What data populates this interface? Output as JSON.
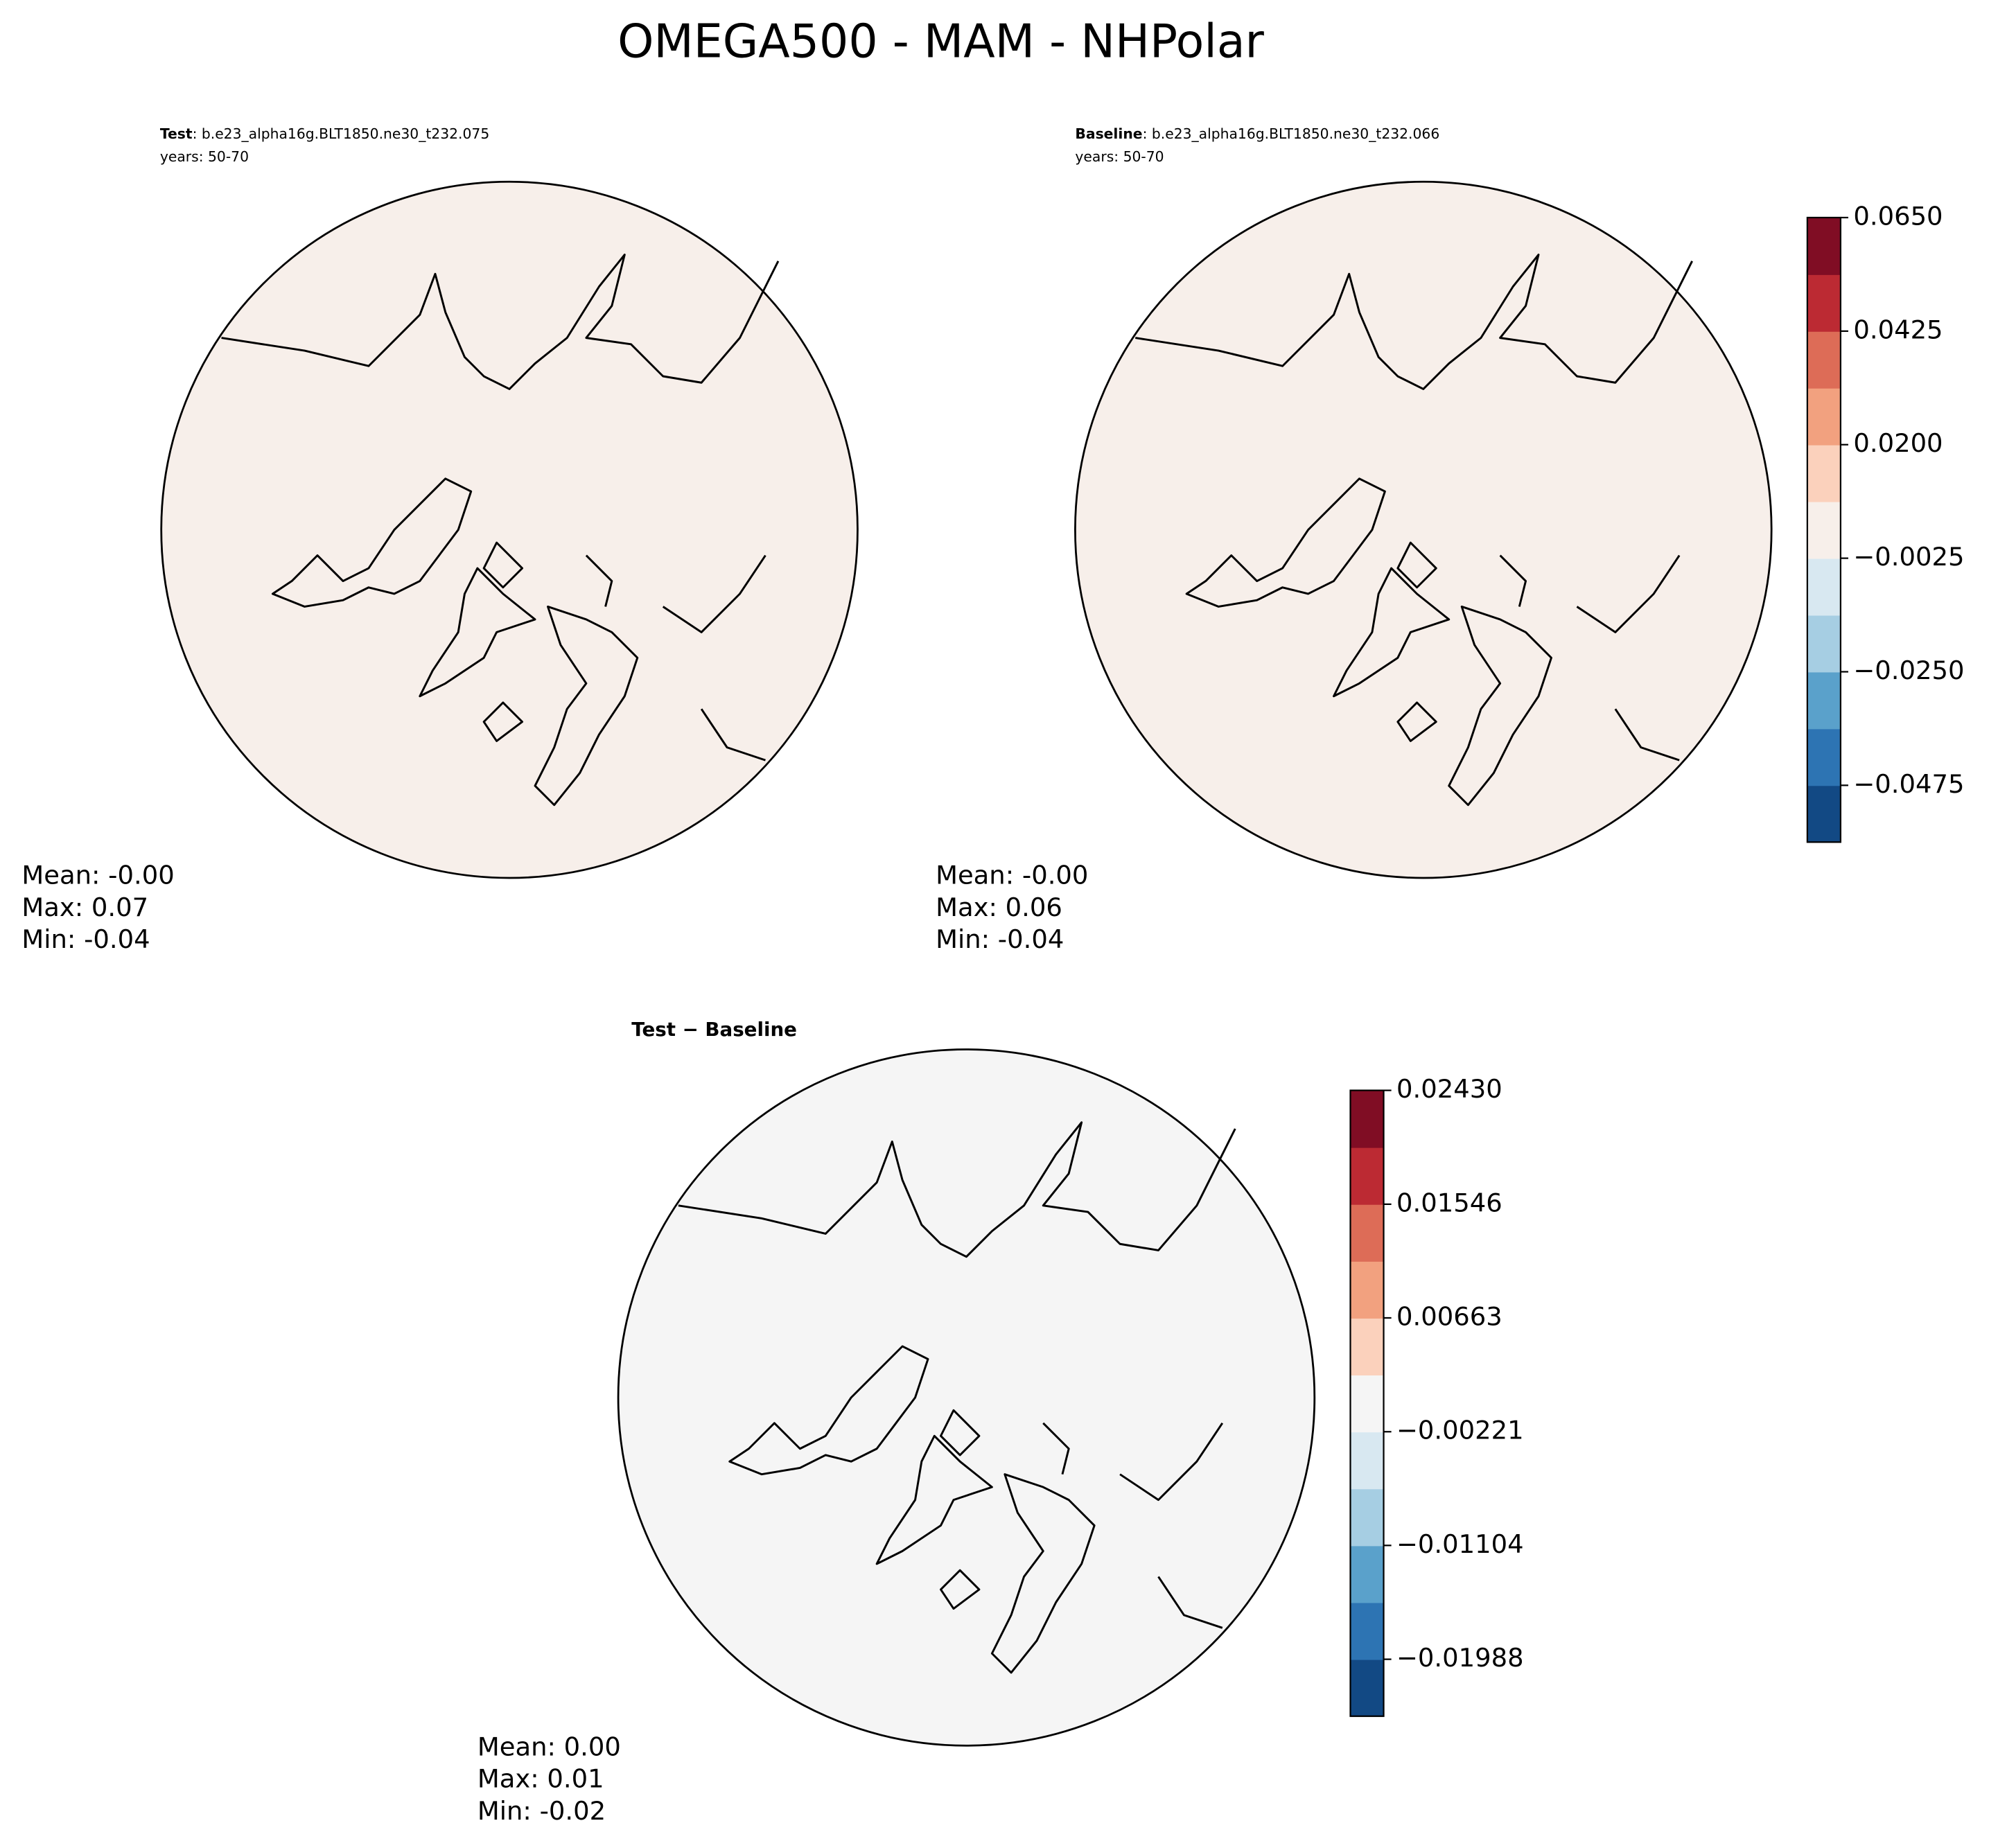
{
  "title": "OMEGA500 - MAM - NHPolar",
  "chart_data": [
    {
      "type": "polar-map",
      "label": "Test",
      "case": ": b.e23_alpha16g.BLT1850.ne30_t232.075",
      "years": "years: 50-70",
      "stats": [
        "Mean: -0.00",
        "Max:  0.07",
        "Min: -0.04"
      ]
    },
    {
      "type": "polar-map",
      "label": "Baseline",
      "case": ": b.e23_alpha16g.BLT1850.ne30_t232.066",
      "years": "years: 50-70",
      "stats": [
        "Mean: -0.00",
        "Max:  0.06",
        "Min: -0.04"
      ],
      "colorbar": {
        "ylim": [
          -0.05875,
          0.065
        ],
        "yticks": [
          {
            "value": -0.0475,
            "label": "−0.0475"
          },
          {
            "value": -0.025,
            "label": "−0.0250"
          },
          {
            "value": -0.0025,
            "label": "−0.0025"
          },
          {
            "value": 0.02,
            "label": "0.0200"
          },
          {
            "value": 0.0425,
            "label": "0.0425"
          },
          {
            "value": 0.065,
            "label": "0.0650"
          }
        ],
        "colors": [
          "#124984",
          "#2d74b3",
          "#5aa1cb",
          "#a6cee3",
          "#d8e8f1",
          "#f7efea",
          "#fbd1bc",
          "#f2a17f",
          "#dd6c57",
          "#bc2a33",
          "#800d24"
        ]
      }
    },
    {
      "type": "polar-map",
      "label": "Test − Baseline",
      "stats": [
        "Mean:  0.00",
        "Max:  0.01",
        "Min: -0.02"
      ],
      "colorbar": {
        "ylim": [
          -0.0243,
          0.0243
        ],
        "yticks": [
          {
            "value": -0.01988,
            "label": "−0.01988"
          },
          {
            "value": -0.01104,
            "label": "−0.01104"
          },
          {
            "value": -0.00221,
            "label": "−0.00221"
          },
          {
            "value": 0.00663,
            "label": "0.00663"
          },
          {
            "value": 0.01546,
            "label": "0.01546"
          },
          {
            "value": 0.0243,
            "label": "0.02430"
          }
        ],
        "colors": [
          "#124984",
          "#2d74b3",
          "#5aa1cb",
          "#a6cee3",
          "#d8e8f1",
          "#f5f5f5",
          "#fbd1bc",
          "#f2a17f",
          "#dd6c57",
          "#bc2a33",
          "#800d24"
        ]
      }
    }
  ]
}
